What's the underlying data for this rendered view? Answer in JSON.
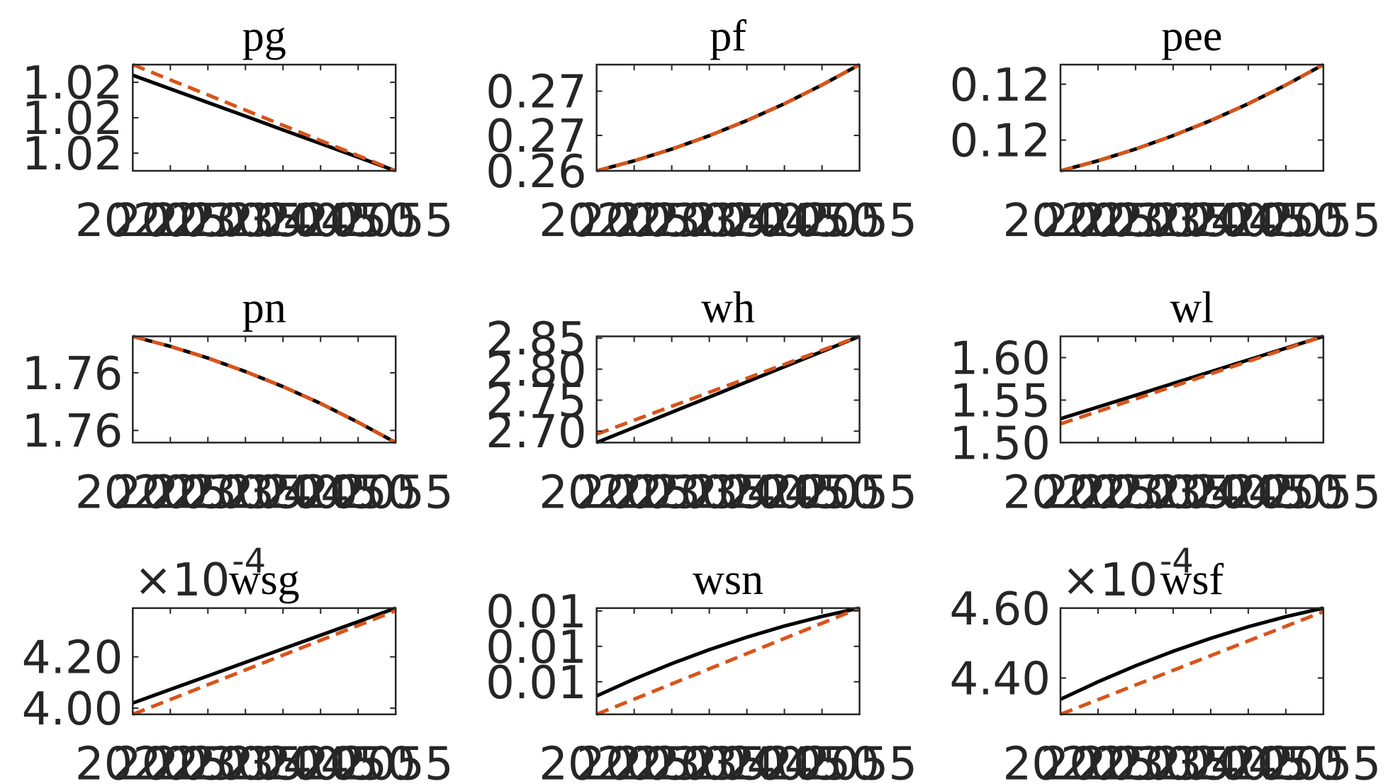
{
  "chart_data": [
    {
      "type": "line",
      "title": "pg",
      "x": [
        2020,
        2025,
        2030,
        2035,
        2040,
        2045,
        2050,
        2055
      ],
      "xlim": [
        2020,
        2055
      ],
      "xticks": [
        2020,
        2025,
        2030,
        2035,
        2040,
        2045,
        2050,
        2055
      ],
      "ylim": [
        1.0185,
        1.0245
      ],
      "yticks": [
        {
          "value": 1.0195,
          "label": "1.02"
        },
        {
          "value": 1.0215,
          "label": "1.02"
        },
        {
          "value": 1.0235,
          "label": "1.02"
        }
      ],
      "series": [
        {
          "color": "#000000",
          "style": "solid",
          "values": [
            1.0239,
            1.02313,
            1.02236,
            1.02159,
            1.02081,
            1.02004,
            1.01927,
            1.0185
          ]
        },
        {
          "color": "#D95319",
          "style": "dashed",
          "values": [
            1.0245,
            1.02364,
            1.02279,
            1.02193,
            1.02107,
            1.02021,
            1.01936,
            1.0185
          ]
        }
      ]
    },
    {
      "type": "line",
      "title": "pf",
      "x": [
        2020,
        2025,
        2030,
        2035,
        2040,
        2045,
        2050,
        2055
      ],
      "xlim": [
        2020,
        2055
      ],
      "xticks": [
        2020,
        2025,
        2030,
        2035,
        2040,
        2045,
        2050,
        2055
      ],
      "ylim": [
        0.264,
        0.276
      ],
      "yticks": [
        {
          "value": 0.264,
          "label": "0.26"
        },
        {
          "value": 0.268,
          "label": "0.27"
        },
        {
          "value": 0.273,
          "label": "0.27"
        }
      ],
      "series": [
        {
          "color": "#000000",
          "style": "solid",
          "values": [
            0.264,
            0.26513,
            0.26645,
            0.26797,
            0.26968,
            0.27158,
            0.2737,
            0.276
          ]
        },
        {
          "color": "#D95319",
          "style": "dashed",
          "values": [
            0.264,
            0.26513,
            0.26645,
            0.26797,
            0.26968,
            0.27158,
            0.2737,
            0.276
          ]
        }
      ]
    },
    {
      "type": "line",
      "title": "pee",
      "x": [
        2020,
        2025,
        2030,
        2035,
        2040,
        2045,
        2050,
        2055
      ],
      "xlim": [
        2020,
        2055
      ],
      "xticks": [
        2020,
        2025,
        2030,
        2035,
        2040,
        2045,
        2050,
        2055
      ],
      "ylim": [
        0.1184,
        0.1222
      ],
      "yticks": [
        {
          "value": 0.1195,
          "label": "0.12"
        },
        {
          "value": 0.1215,
          "label": "0.12"
        }
      ],
      "series": [
        {
          "color": "#000000",
          "style": "solid",
          "values": [
            0.1184,
            0.11876,
            0.11918,
            0.11966,
            0.1202,
            0.1208,
            0.12147,
            0.1222
          ]
        },
        {
          "color": "#D95319",
          "style": "dashed",
          "values": [
            0.1184,
            0.11876,
            0.11918,
            0.11966,
            0.1202,
            0.1208,
            0.12147,
            0.1222
          ]
        }
      ]
    },
    {
      "type": "line",
      "title": "pn",
      "x": [
        2020,
        2025,
        2030,
        2035,
        2040,
        2045,
        2050,
        2055
      ],
      "xlim": [
        2020,
        2055
      ],
      "xticks": [
        2020,
        2025,
        2030,
        2035,
        2040,
        2045,
        2050,
        2055
      ],
      "ylim": [
        1.756,
        1.763
      ],
      "yticks": [
        {
          "value": 1.7568,
          "label": "1.76"
        },
        {
          "value": 1.7606,
          "label": "1.76"
        }
      ],
      "series": [
        {
          "color": "#000000",
          "style": "solid",
          "values": [
            1.763,
            1.76234,
            1.76157,
            1.76068,
            1.75969,
            1.75858,
            1.75734,
            1.756
          ]
        },
        {
          "color": "#D95319",
          "style": "dashed",
          "values": [
            1.763,
            1.76234,
            1.76157,
            1.76068,
            1.75969,
            1.75858,
            1.75734,
            1.756
          ]
        }
      ]
    },
    {
      "type": "line",
      "title": "wh",
      "x": [
        2020,
        2025,
        2030,
        2035,
        2040,
        2045,
        2050,
        2055
      ],
      "xlim": [
        2020,
        2055
      ],
      "xticks": [
        2020,
        2025,
        2030,
        2035,
        2040,
        2045,
        2050,
        2055
      ],
      "ylim": [
        2.6815,
        2.853
      ],
      "yticks": [
        {
          "value": 2.7,
          "label": "2.70"
        },
        {
          "value": 2.75,
          "label": "2.75"
        },
        {
          "value": 2.8,
          "label": "2.80"
        },
        {
          "value": 2.85,
          "label": "2.85"
        }
      ],
      "series": [
        {
          "color": "#000000",
          "style": "solid",
          "values": [
            2.6815,
            2.706,
            2.7305,
            2.755,
            2.7795,
            2.804,
            2.8285,
            2.853
          ]
        },
        {
          "color": "#D95319",
          "style": "dashed",
          "values": [
            2.695,
            2.7176,
            2.7401,
            2.7627,
            2.7853,
            2.8079,
            2.8304,
            2.853
          ]
        }
      ]
    },
    {
      "type": "line",
      "title": "wl",
      "x": [
        2020,
        2025,
        2030,
        2035,
        2040,
        2045,
        2050,
        2055
      ],
      "xlim": [
        2020,
        2055
      ],
      "xticks": [
        2020,
        2025,
        2030,
        2035,
        2040,
        2045,
        2050,
        2055
      ],
      "ylim": [
        1.5,
        1.625
      ],
      "yticks": [
        {
          "value": 1.5,
          "label": "1.50"
        },
        {
          "value": 1.55,
          "label": "1.55"
        },
        {
          "value": 1.6,
          "label": "1.60"
        }
      ],
      "series": [
        {
          "color": "#000000",
          "style": "solid",
          "values": [
            1.528,
            1.5419,
            1.5557,
            1.5696,
            1.5834,
            1.5973,
            1.6111,
            1.625
          ]
        },
        {
          "color": "#D95319",
          "style": "dashed",
          "values": [
            1.522,
            1.5367,
            1.5514,
            1.5661,
            1.5809,
            1.5956,
            1.6103,
            1.625
          ]
        }
      ]
    },
    {
      "type": "line",
      "title": "wsg",
      "y_multiplier": "×10",
      "y_exponent": "-4",
      "x": [
        2020,
        2025,
        2030,
        2035,
        2040,
        2045,
        2050,
        2055
      ],
      "xlim": [
        2020,
        2055
      ],
      "xticks": [
        2020,
        2025,
        2030,
        2035,
        2040,
        2045,
        2050,
        2055
      ],
      "ylim": [
        3.976,
        4.39
      ],
      "yticks": [
        {
          "value": 4,
          "label": "4.00"
        },
        {
          "value": 4.2,
          "label": "4.20"
        }
      ],
      "series": [
        {
          "color": "#000000",
          "style": "solid",
          "values": [
            4.02,
            4.0729,
            4.1257,
            4.1786,
            4.2314,
            4.2843,
            4.3371,
            4.39
          ]
        },
        {
          "color": "#D95319",
          "style": "dashed",
          "values": [
            3.976,
            4.0337,
            4.0914,
            4.1491,
            4.2069,
            4.2646,
            4.3223,
            4.38
          ]
        }
      ]
    },
    {
      "type": "line",
      "title": "wsn",
      "x": [
        2020,
        2025,
        2030,
        2035,
        2040,
        2045,
        2050,
        2055
      ],
      "xlim": [
        2020,
        2055
      ],
      "xticks": [
        2020,
        2025,
        2030,
        2035,
        2040,
        2045,
        2050,
        2055
      ],
      "ylim": [
        0.01004,
        0.01154
      ],
      "yticks": [
        {
          "value": 0.0105,
          "label": "0.01"
        },
        {
          "value": 0.011,
          "label": "0.01"
        },
        {
          "value": 0.0115,
          "label": "0.01"
        }
      ],
      "series": [
        {
          "color": "#000000",
          "style": "solid",
          "values": [
            0.0103,
            0.010538,
            0.010756,
            0.010953,
            0.01113,
            0.011287,
            0.011423,
            0.01154
          ]
        },
        {
          "color": "#D95319",
          "style": "dashed",
          "values": [
            0.01004,
            0.010254,
            0.010469,
            0.010683,
            0.010897,
            0.011111,
            0.011326,
            0.01154
          ]
        }
      ]
    },
    {
      "type": "line",
      "title": "wsf",
      "y_multiplier": "×10",
      "y_exponent": "-4",
      "x": [
        2020,
        2025,
        2030,
        2035,
        2040,
        2045,
        2050,
        2055
      ],
      "xlim": [
        2020,
        2055
      ],
      "xticks": [
        2020,
        2025,
        2030,
        2035,
        2040,
        2045,
        2050,
        2055
      ],
      "ylim": [
        4.296,
        4.6
      ],
      "yticks": [
        {
          "value": 4.4,
          "label": "4.40"
        },
        {
          "value": 4.6,
          "label": "4.60"
        }
      ],
      "series": [
        {
          "color": "#000000",
          "style": "solid",
          "values": [
            4.339,
            4.3891,
            4.435,
            4.4765,
            4.5136,
            4.5468,
            4.5755,
            4.6
          ]
        },
        {
          "color": "#D95319",
          "style": "dashed",
          "values": [
            4.296,
            4.338,
            4.38,
            4.422,
            4.464,
            4.506,
            4.548,
            4.59
          ]
        }
      ]
    }
  ]
}
